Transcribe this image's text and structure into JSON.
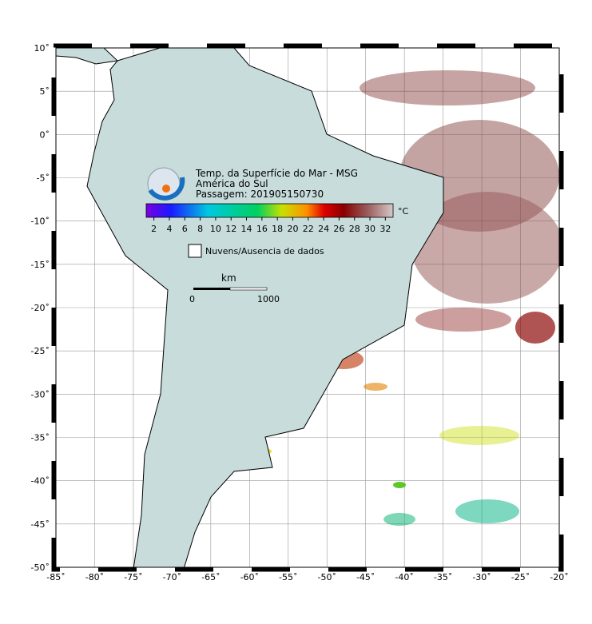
{
  "header": {
    "title_lines": [
      "Temp. da Superfície do Mar - MSG",
      "América do Sul",
      "Passagem: 201905150730"
    ]
  },
  "colorbar": {
    "unit": "°C",
    "lim": [
      1,
      33
    ],
    "ticks": [
      2,
      4,
      6,
      8,
      10,
      12,
      14,
      16,
      18,
      20,
      22,
      24,
      26,
      28,
      30,
      32
    ]
  },
  "legend": {
    "label": "Nuvens/Ausencia de dados"
  },
  "scale_bar": {
    "unit": "km",
    "labels": [
      "0",
      "1000"
    ]
  },
  "map": {
    "lonlim": [
      -85,
      -20
    ],
    "latlim": [
      -50,
      10
    ],
    "lonticks": [
      {
        "value": -85,
        "label": "-85˚"
      },
      {
        "value": -80,
        "label": "-80˚"
      },
      {
        "value": -75,
        "label": "-75˚"
      },
      {
        "value": -70,
        "label": "-70˚"
      },
      {
        "value": -65,
        "label": "-65˚"
      },
      {
        "value": -60,
        "label": "-60˚"
      },
      {
        "value": -55,
        "label": "-55˚"
      },
      {
        "value": -50,
        "label": "-50˚"
      },
      {
        "value": -45,
        "label": "-45˚"
      },
      {
        "value": -40,
        "label": "-40˚"
      },
      {
        "value": -35,
        "label": "-35˚"
      },
      {
        "value": -30,
        "label": "-30˚"
      },
      {
        "value": -25,
        "label": "-25˚"
      },
      {
        "value": -20,
        "label": "-20˚"
      }
    ],
    "latticks": [
      {
        "value": 10,
        "label": "10˚"
      },
      {
        "value": 5,
        "label": "5˚"
      },
      {
        "value": 0,
        "label": "0˚"
      },
      {
        "value": -5,
        "label": "-5˚"
      },
      {
        "value": -10,
        "label": "-10˚"
      },
      {
        "value": -15,
        "label": "-15˚"
      },
      {
        "value": -20,
        "label": "-20˚"
      },
      {
        "value": -25,
        "label": "-25˚"
      },
      {
        "value": -30,
        "label": "-30˚"
      },
      {
        "value": -35,
        "label": "-35˚"
      },
      {
        "value": -40,
        "label": "-40˚"
      },
      {
        "value": -45,
        "label": "-45˚"
      },
      {
        "value": -50,
        "label": "-50˚"
      }
    ]
  }
}
